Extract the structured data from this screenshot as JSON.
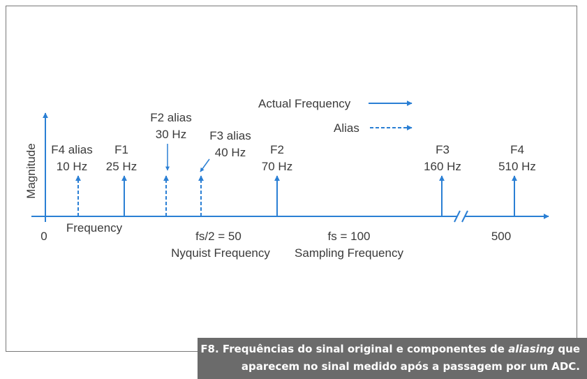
{
  "diagram": {
    "axis": {
      "y_label": "Magnitude",
      "x_label": "Frequency",
      "origin": "0",
      "ticks": [
        {
          "label": "fs/2 = 50",
          "caption": "Nyquist Frequency"
        },
        {
          "label": "fs = 100",
          "caption": "Sampling Frequency"
        },
        {
          "label": "500"
        }
      ]
    },
    "legend": [
      {
        "label": "Actual Frequency"
      },
      {
        "label": "Alias"
      }
    ],
    "signals": [
      {
        "name": "F4 alias",
        "freq": "10 Hz"
      },
      {
        "name": "F1",
        "freq": "25 Hz"
      },
      {
        "name": "F2 alias",
        "freq": "30 Hz"
      },
      {
        "name": "F3 alias",
        "freq": "40 Hz"
      },
      {
        "name": "F2",
        "freq": "70 Hz"
      },
      {
        "name": "F3",
        "freq": "160 Hz"
      },
      {
        "name": "F4",
        "freq": "510 Hz"
      }
    ]
  },
  "caption": {
    "prefix": "F8. Frequências do sinal original e componentes de ",
    "emphasis": "aliasing",
    "suffix": " que",
    "line2": "aparecem no sinal medido após a passagem por um ADC."
  }
}
